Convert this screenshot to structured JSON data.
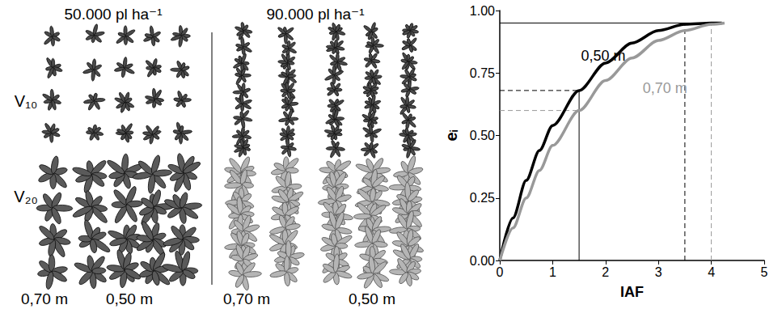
{
  "illustration": {
    "panels": [
      {
        "title": "50.000 pl ha⁻¹"
      },
      {
        "title": "90.000 pl ha⁻¹"
      }
    ],
    "stages": [
      "V₁₀",
      "V₂₀"
    ],
    "row_spacings": [
      "0,70 m",
      "0,50 m"
    ]
  },
  "chart_data": {
    "type": "line",
    "xlabel": "IAF",
    "ylabel": "eᵢ",
    "xlim": [
      0,
      5
    ],
    "xticks": [
      0,
      1,
      2,
      3,
      4,
      5
    ],
    "ylim": [
      0,
      1
    ],
    "yticks": [
      {
        "value": 0,
        "label": "0.00"
      },
      {
        "value": 0.25,
        "label": "0.25"
      },
      {
        "value": 0.5,
        "label": "0.50"
      },
      {
        "value": 0.75,
        "label": "0.75"
      },
      {
        "value": 1,
        "label": "1.00"
      }
    ],
    "grid": false,
    "series": [
      {
        "name": "0,50 m",
        "color": "#000000",
        "x": [
          0,
          0.25,
          0.5,
          0.75,
          1,
          1.5,
          2,
          2.5,
          3,
          3.5,
          4,
          4.2
        ],
        "values": [
          0,
          0.17,
          0.32,
          0.44,
          0.54,
          0.68,
          0.79,
          0.87,
          0.92,
          0.945,
          0.95,
          0.95
        ]
      },
      {
        "name": "0,70 m",
        "color": "#999999",
        "x": [
          0,
          0.25,
          0.5,
          0.75,
          1,
          1.5,
          2,
          2.5,
          3,
          3.5,
          4,
          4.25
        ],
        "values": [
          0,
          0.13,
          0.25,
          0.36,
          0.46,
          0.6,
          0.72,
          0.81,
          0.88,
          0.92,
          0.945,
          0.95
        ]
      }
    ],
    "reference_lines": [
      {
        "x": [
          0,
          4.2
        ],
        "y": [
          0.95,
          0.95
        ],
        "color": "#000000",
        "line_style": "solid"
      },
      {
        "x": [
          1.5,
          1.5
        ],
        "y": [
          0,
          0.68
        ],
        "color": "#000000",
        "line_style": "solid"
      },
      {
        "x": [
          0,
          1.5
        ],
        "y": [
          0.68,
          0.68
        ],
        "color": "#000000",
        "line_style": "dashed"
      },
      {
        "x": [
          0,
          1.5
        ],
        "y": [
          0.6,
          0.6
        ],
        "color": "#999999",
        "line_style": "dashed"
      },
      {
        "x": [
          3.5,
          3.5
        ],
        "y": [
          0,
          0.95
        ],
        "color": "#000000",
        "line_style": "dashed"
      },
      {
        "x": [
          4,
          4
        ],
        "y": [
          0,
          0.95
        ],
        "color": "#999999",
        "line_style": "dashed"
      }
    ]
  }
}
